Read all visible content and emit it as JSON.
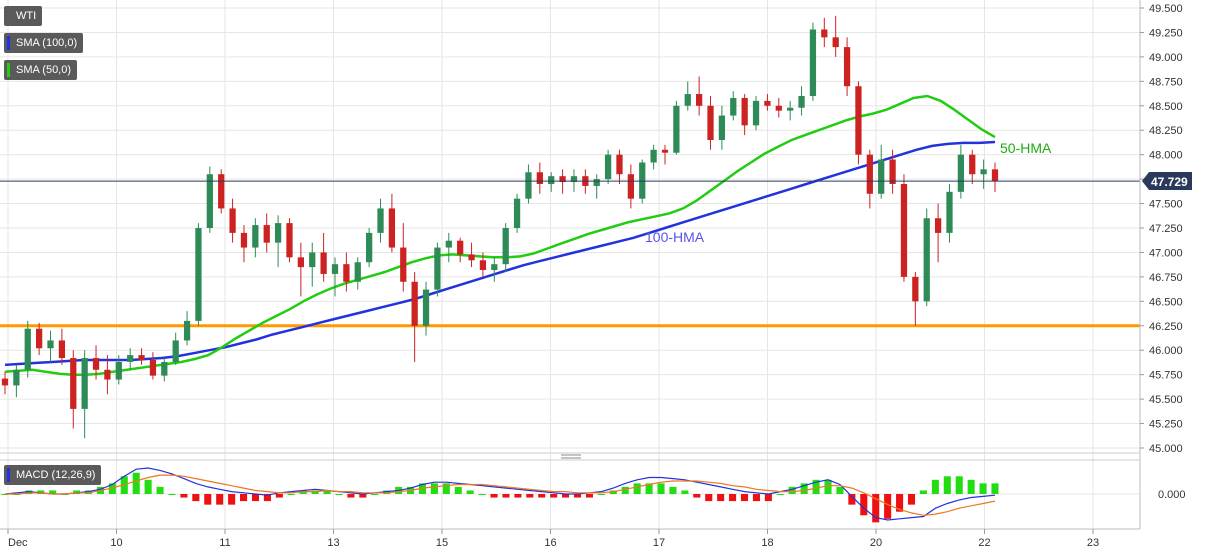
{
  "legend": {
    "instrument": "WTI",
    "sma100": "SMA (100,0)",
    "sma50": "SMA (50,0)",
    "macd": "MACD (12,26,9)"
  },
  "colors": {
    "sma100": "#2233dd",
    "sma50": "#22cc11",
    "support": "#ff9900",
    "bull": "#2e8b57",
    "bear": "#cc2222",
    "macd_line": "#2233dd",
    "signal_line": "#ee7722",
    "hist_pos": "#22dd11",
    "hist_neg": "#ee1111",
    "price_line": "#2b3a5c",
    "grid": "#e6e6e6"
  },
  "chart_data": {
    "type": "candlestick",
    "price_axis": {
      "ylim": [
        45.0,
        49.5
      ],
      "ticks": [
        "49.500",
        "49.250",
        "49.000",
        "48.750",
        "48.500",
        "48.250",
        "48.000",
        "47.750",
        "47.500",
        "47.250",
        "47.000",
        "46.750",
        "46.500",
        "46.250",
        "46.000",
        "45.750",
        "45.500",
        "45.250",
        "45.000"
      ]
    },
    "x_tick_labels": [
      "Dec",
      "10",
      "11",
      "13",
      "15",
      "16",
      "17",
      "18",
      "20",
      "22",
      "23"
    ],
    "current_price": "47.729",
    "support_level": 46.25,
    "annotations": {
      "hma50": "50-HMA",
      "hma100": "100-HMA"
    },
    "candles": [
      [
        45.71,
        45.78,
        45.55,
        45.64
      ],
      [
        45.64,
        45.85,
        45.52,
        45.8
      ],
      [
        45.8,
        46.3,
        45.72,
        46.22
      ],
      [
        46.22,
        46.28,
        45.95,
        46.02
      ],
      [
        46.02,
        46.2,
        45.88,
        46.1
      ],
      [
        46.1,
        46.22,
        45.85,
        45.92
      ],
      [
        45.92,
        46.0,
        45.2,
        45.4
      ],
      [
        45.4,
        46.0,
        45.1,
        45.92
      ],
      [
        45.92,
        46.05,
        45.7,
        45.8
      ],
      [
        45.8,
        45.95,
        45.55,
        45.7
      ],
      [
        45.7,
        45.95,
        45.65,
        45.88
      ],
      [
        45.88,
        46.02,
        45.8,
        45.95
      ],
      [
        45.95,
        46.02,
        45.85,
        45.9
      ],
      [
        45.9,
        45.98,
        45.7,
        45.74
      ],
      [
        45.74,
        45.92,
        45.68,
        45.88
      ],
      [
        45.88,
        46.18,
        45.85,
        46.1
      ],
      [
        46.1,
        46.4,
        46.05,
        46.3
      ],
      [
        46.3,
        47.3,
        46.25,
        47.25
      ],
      [
        47.25,
        47.88,
        47.2,
        47.8
      ],
      [
        47.8,
        47.85,
        47.4,
        47.45
      ],
      [
        47.45,
        47.55,
        47.1,
        47.2
      ],
      [
        47.2,
        47.28,
        46.9,
        47.05
      ],
      [
        47.05,
        47.35,
        46.95,
        47.28
      ],
      [
        47.28,
        47.4,
        47.0,
        47.1
      ],
      [
        47.1,
        47.38,
        46.85,
        47.3
      ],
      [
        47.3,
        47.35,
        46.9,
        46.95
      ],
      [
        46.95,
        47.1,
        46.55,
        46.85
      ],
      [
        46.85,
        47.1,
        46.65,
        47.0
      ],
      [
        47.0,
        47.2,
        46.7,
        46.78
      ],
      [
        46.78,
        46.95,
        46.55,
        46.88
      ],
      [
        46.88,
        47.0,
        46.6,
        46.7
      ],
      [
        46.7,
        46.95,
        46.62,
        46.9
      ],
      [
        46.9,
        47.25,
        46.85,
        47.2
      ],
      [
        47.2,
        47.55,
        47.1,
        47.45
      ],
      [
        47.45,
        47.6,
        47.0,
        47.05
      ],
      [
        47.05,
        47.3,
        46.6,
        46.7
      ],
      [
        46.7,
        46.8,
        45.88,
        46.25
      ],
      [
        46.25,
        46.7,
        46.15,
        46.62
      ],
      [
        46.62,
        47.1,
        46.55,
        47.05
      ],
      [
        47.05,
        47.2,
        46.9,
        47.12
      ],
      [
        47.12,
        47.15,
        46.9,
        46.98
      ],
      [
        46.98,
        47.1,
        46.85,
        46.92
      ],
      [
        46.92,
        47.0,
        46.75,
        46.82
      ],
      [
        46.82,
        46.95,
        46.7,
        46.88
      ],
      [
        46.88,
        47.3,
        46.8,
        47.25
      ],
      [
        47.25,
        47.6,
        47.2,
        47.55
      ],
      [
        47.55,
        47.9,
        47.5,
        47.82
      ],
      [
        47.82,
        47.92,
        47.6,
        47.7
      ],
      [
        47.7,
        47.82,
        47.62,
        47.78
      ],
      [
        47.78,
        47.85,
        47.6,
        47.72
      ],
      [
        47.72,
        47.85,
        47.62,
        47.78
      ],
      [
        47.78,
        47.85,
        47.6,
        47.68
      ],
      [
        47.68,
        47.8,
        47.55,
        47.75
      ],
      [
        47.75,
        48.05,
        47.7,
        48.0
      ],
      [
        48.0,
        48.05,
        47.7,
        47.8
      ],
      [
        47.8,
        47.9,
        47.45,
        47.55
      ],
      [
        47.55,
        47.95,
        47.5,
        47.92
      ],
      [
        47.92,
        48.1,
        47.85,
        48.05
      ],
      [
        48.05,
        48.1,
        47.9,
        48.02
      ],
      [
        48.02,
        48.55,
        48.0,
        48.5
      ],
      [
        48.5,
        48.75,
        48.45,
        48.62
      ],
      [
        48.62,
        48.8,
        48.4,
        48.5
      ],
      [
        48.5,
        48.6,
        48.05,
        48.15
      ],
      [
        48.15,
        48.5,
        48.05,
        48.4
      ],
      [
        48.4,
        48.65,
        48.35,
        48.58
      ],
      [
        48.58,
        48.62,
        48.2,
        48.3
      ],
      [
        48.3,
        48.6,
        48.25,
        48.55
      ],
      [
        48.55,
        48.62,
        48.45,
        48.5
      ],
      [
        48.5,
        48.58,
        48.38,
        48.45
      ],
      [
        48.45,
        48.55,
        48.35,
        48.48
      ],
      [
        48.48,
        48.7,
        48.4,
        48.6
      ],
      [
        48.6,
        49.35,
        48.55,
        49.28
      ],
      [
        49.28,
        49.4,
        49.1,
        49.2
      ],
      [
        49.2,
        49.42,
        49.0,
        49.1
      ],
      [
        49.1,
        49.2,
        48.6,
        48.7
      ],
      [
        48.7,
        48.75,
        47.9,
        48.0
      ],
      [
        48.0,
        48.05,
        47.45,
        47.6
      ],
      [
        47.6,
        48.1,
        47.55,
        47.95
      ],
      [
        47.95,
        48.05,
        47.6,
        47.7
      ],
      [
        47.7,
        47.8,
        46.7,
        46.75
      ],
      [
        46.75,
        46.8,
        46.25,
        46.5
      ],
      [
        46.5,
        47.45,
        46.45,
        47.35
      ],
      [
        47.35,
        47.5,
        46.9,
        47.2
      ],
      [
        47.2,
        47.7,
        47.1,
        47.62
      ],
      [
        47.62,
        48.1,
        47.55,
        48.0
      ],
      [
        48.0,
        48.05,
        47.7,
        47.8
      ],
      [
        47.8,
        47.95,
        47.65,
        47.85
      ],
      [
        47.85,
        47.92,
        47.62,
        47.73
      ]
    ],
    "sma50": [
      45.78,
      45.79,
      45.8,
      45.78,
      45.76,
      45.75,
      45.75,
      45.76,
      45.78,
      45.8,
      45.82,
      45.84,
      45.86,
      45.88,
      45.91,
      45.95,
      46.03,
      46.12,
      46.2,
      46.28,
      46.35,
      46.42,
      46.5,
      46.57,
      46.63,
      46.68,
      46.72,
      46.76,
      46.8,
      46.85,
      46.9,
      46.94,
      46.97,
      46.98,
      46.97,
      46.96,
      46.95,
      46.95,
      46.96,
      46.99,
      47.04,
      47.09,
      47.14,
      47.19,
      47.23,
      47.27,
      47.31,
      47.34,
      47.37,
      47.4,
      47.45,
      47.53,
      47.63,
      47.73,
      47.83,
      47.92,
      48.01,
      48.08,
      48.15,
      48.2,
      48.25,
      48.3,
      48.35,
      48.39,
      48.42,
      48.46,
      48.52,
      48.58,
      48.6,
      48.55,
      48.46,
      48.36,
      48.26,
      48.18
    ],
    "sma100": [
      45.85,
      45.86,
      45.87,
      45.88,
      45.89,
      45.9,
      45.9,
      45.9,
      45.9,
      45.91,
      45.92,
      45.94,
      45.97,
      46.0,
      46.03,
      46.07,
      46.11,
      46.16,
      46.2,
      46.24,
      46.28,
      46.32,
      46.36,
      46.4,
      46.44,
      46.48,
      46.52,
      46.57,
      46.62,
      46.67,
      46.72,
      46.77,
      46.82,
      46.87,
      46.91,
      46.95,
      46.99,
      47.03,
      47.07,
      47.11,
      47.15,
      47.2,
      47.25,
      47.3,
      47.35,
      47.4,
      47.45,
      47.5,
      47.55,
      47.6,
      47.65,
      47.7,
      47.75,
      47.8,
      47.85,
      47.9,
      47.95,
      48.0,
      48.05,
      48.09,
      48.11,
      48.12,
      48.12,
      48.13
    ],
    "macd_axis": {
      "zero_label": "0.000"
    },
    "macd": [
      0.0,
      0.01,
      0.02,
      0.01,
      0.0,
      0.0,
      0.01,
      0.02,
      0.04,
      0.08,
      0.15,
      0.21,
      0.22,
      0.2,
      0.17,
      0.13,
      0.09,
      0.06,
      0.04,
      0.02,
      0.01,
      0.0,
      -0.01,
      0.01,
      0.02,
      0.03,
      0.04,
      0.03,
      0.02,
      0.01,
      0.0,
      0.01,
      0.02,
      0.03,
      0.05,
      0.08,
      0.1,
      0.1,
      0.09,
      0.08,
      0.07,
      0.06,
      0.05,
      0.04,
      0.03,
      0.02,
      0.01,
      0.0,
      0.0,
      0.01,
      0.02,
      0.05,
      0.09,
      0.12,
      0.14,
      0.14,
      0.13,
      0.12,
      0.1,
      0.08,
      0.06,
      0.04,
      0.02,
      0.01,
      0.0,
      0.02,
      0.04,
      0.07,
      0.1,
      0.12,
      0.08,
      -0.02,
      -0.12,
      -0.2,
      -0.22,
      -0.21,
      -0.2,
      -0.19,
      -0.12,
      -0.08,
      -0.05,
      -0.03,
      -0.02,
      -0.01
    ],
    "signal": [
      0.0,
      0.0,
      0.01,
      0.01,
      0.0,
      0.0,
      0.01,
      0.01,
      0.03,
      0.05,
      0.08,
      0.11,
      0.14,
      0.16,
      0.16,
      0.15,
      0.13,
      0.11,
      0.09,
      0.07,
      0.05,
      0.03,
      0.02,
      0.01,
      0.01,
      0.02,
      0.02,
      0.03,
      0.02,
      0.02,
      0.01,
      0.01,
      0.01,
      0.02,
      0.03,
      0.05,
      0.06,
      0.07,
      0.08,
      0.08,
      0.08,
      0.07,
      0.06,
      0.05,
      0.04,
      0.03,
      0.02,
      0.02,
      0.01,
      0.01,
      0.01,
      0.02,
      0.04,
      0.06,
      0.08,
      0.1,
      0.11,
      0.11,
      0.11,
      0.1,
      0.09,
      0.07,
      0.06,
      0.04,
      0.03,
      0.02,
      0.02,
      0.03,
      0.05,
      0.07,
      0.07,
      0.05,
      0.01,
      -0.04,
      -0.09,
      -0.13,
      -0.16,
      -0.18,
      -0.17,
      -0.15,
      -0.12,
      -0.1,
      -0.08,
      -0.06
    ],
    "histogram": [
      0.0,
      0.0,
      0.01,
      0.01,
      0.01,
      0.0,
      0.01,
      0.01,
      0.02,
      0.03,
      0.05,
      0.06,
      0.04,
      0.02,
      0.0,
      -0.01,
      -0.02,
      -0.03,
      -0.03,
      -0.03,
      -0.02,
      -0.02,
      -0.02,
      -0.01,
      0.0,
      0.01,
      0.01,
      0.01,
      0.0,
      -0.01,
      -0.01,
      0.0,
      0.01,
      0.02,
      0.02,
      0.03,
      0.03,
      0.03,
      0.02,
      0.01,
      0.0,
      -0.01,
      -0.01,
      -0.01,
      -0.01,
      -0.01,
      -0.01,
      -0.01,
      -0.01,
      -0.01,
      0.0,
      0.01,
      0.02,
      0.03,
      0.03,
      0.03,
      0.02,
      0.01,
      -0.01,
      -0.02,
      -0.02,
      -0.02,
      -0.02,
      -0.02,
      -0.02,
      0.0,
      0.02,
      0.03,
      0.04,
      0.04,
      0.02,
      -0.03,
      -0.06,
      -0.08,
      -0.07,
      -0.05,
      -0.03,
      0.01,
      0.04,
      0.05,
      0.05,
      0.04,
      0.03,
      0.03
    ]
  }
}
